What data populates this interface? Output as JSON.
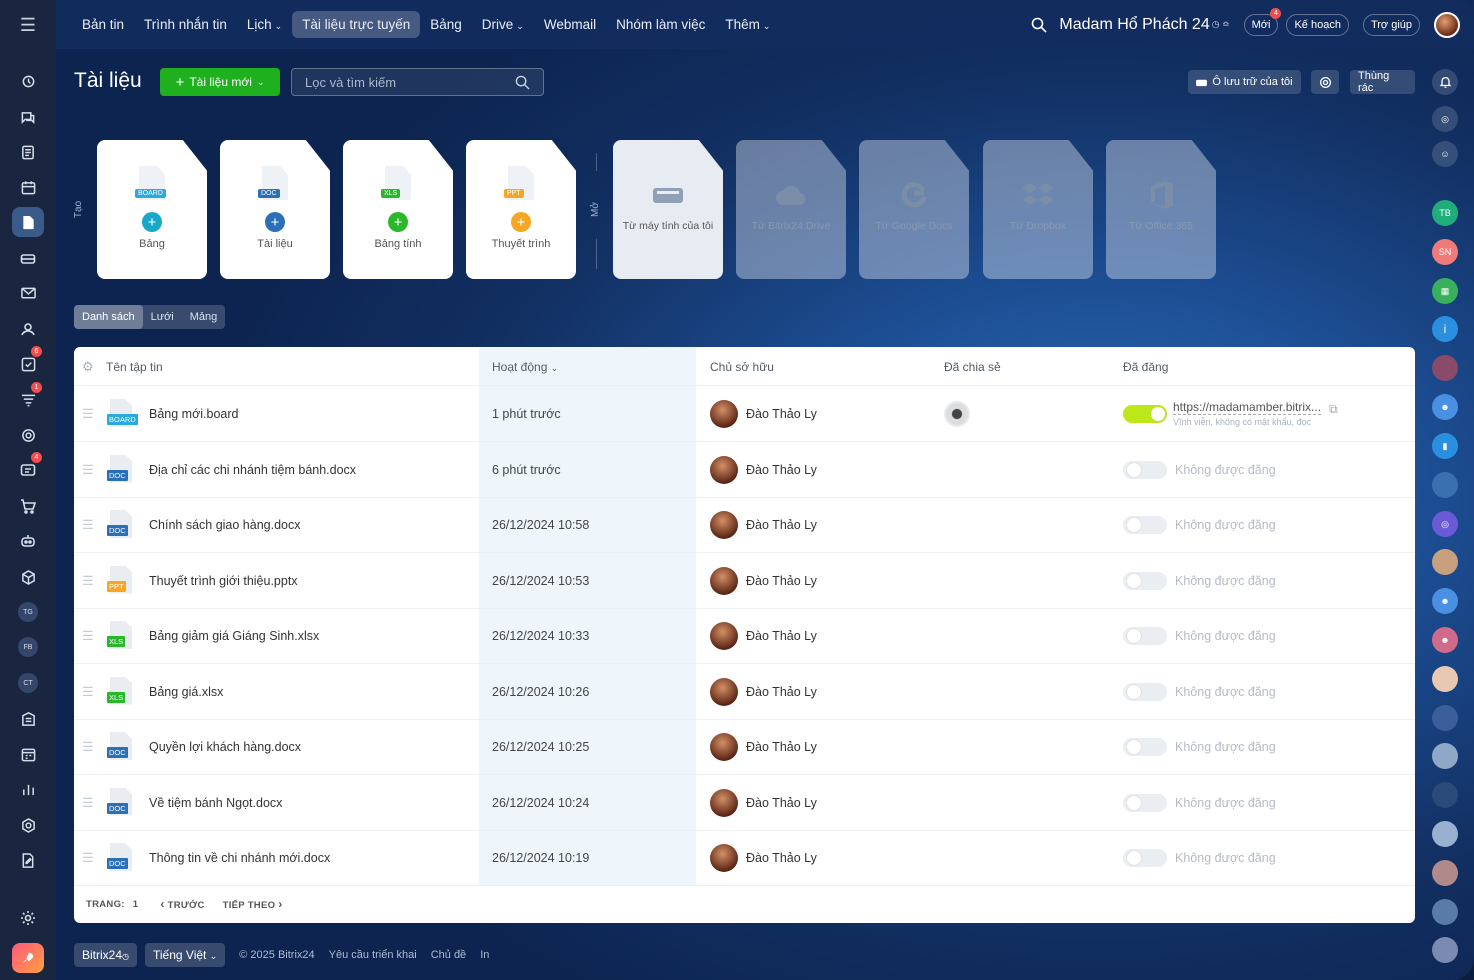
{
  "topbar": {
    "menu_items": [
      {
        "label": "Bản tin",
        "chevron": false,
        "active": false
      },
      {
        "label": "Trình nhắn tin",
        "chevron": false,
        "active": false
      },
      {
        "label": "Lịch",
        "chevron": true,
        "active": false
      },
      {
        "label": "Tài liệu trực tuyến",
        "chevron": false,
        "active": true
      },
      {
        "label": "Bảng",
        "chevron": false,
        "active": false
      },
      {
        "label": "Drive",
        "chevron": true,
        "active": false
      },
      {
        "label": "Webmail",
        "chevron": false,
        "active": false
      },
      {
        "label": "Nhóm làm việc",
        "chevron": false,
        "active": false
      },
      {
        "label": "Thêm",
        "chevron": true,
        "active": false
      }
    ],
    "user_name": "Madam Hổ Phách 24",
    "new_label": "Mới",
    "new_count": "4",
    "plan_label": "Kế hoạch",
    "help_label": "Trợ giúp"
  },
  "leftbar": {
    "badges": {
      "tasks": "6",
      "feed": "1",
      "chat": "4"
    },
    "tags": [
      "TG",
      "FB",
      "CT"
    ]
  },
  "header": {
    "title": "Tài liệu",
    "new_button": "Tài liệu mới",
    "search_placeholder": "Lọc và tìm kiếm",
    "my_storage": "Ô lưu trữ của tôi",
    "trash": "Thùng rác"
  },
  "create_section": {
    "label": "Tạo",
    "cards": [
      {
        "tag": "BOARD",
        "label": "Bảng",
        "tag_color": "#2aa8e0",
        "plus_color": "#17a7c9"
      },
      {
        "tag": "DOC",
        "label": "Tài liệu",
        "tag_color": "#2a6fb8",
        "plus_color": "#2a6fb8"
      },
      {
        "tag": "XLS",
        "label": "Bảng tính",
        "tag_color": "#28b82a",
        "plus_color": "#28b82a"
      },
      {
        "tag": "PPT",
        "label": "Thuyết trình",
        "tag_color": "#f5a623",
        "plus_color": "#f5a623"
      }
    ]
  },
  "open_section": {
    "label": "Mở",
    "cards": [
      {
        "label": "Từ máy tính của tôi",
        "icon": "hard-drive-icon"
      },
      {
        "label": "Từ Bitrix24.Drive",
        "icon": "cloud-icon"
      },
      {
        "label": "Từ Google Docs",
        "icon": "google-icon"
      },
      {
        "label": "Từ Dropbox",
        "icon": "dropbox-icon"
      },
      {
        "label": "Từ Office 365",
        "icon": "office-icon"
      }
    ]
  },
  "view_tabs": [
    "Danh sách",
    "Lưới",
    "Mảng"
  ],
  "grid": {
    "headers": {
      "name": "Tên tập tin",
      "activity": "Hoạt động",
      "owner": "Chủ sở hữu",
      "shared": "Đã chia sẻ",
      "published": "Đã đăng"
    },
    "rows": [
      {
        "type": "BOARD",
        "name": "Bảng mới.board",
        "activity": "1 phút trước",
        "owner": "Đào Thảo Ly",
        "shared": true,
        "published": true,
        "link": "https://madamamber.bitrix...",
        "link_note": "Vĩnh viễn, không có mật khẩu, đọc"
      },
      {
        "type": "DOC",
        "name": "Địa chỉ các chi nhánh tiệm bánh.docx",
        "activity": "6 phút trước",
        "owner": "Đào Thảo Ly",
        "shared": false,
        "published": false
      },
      {
        "type": "DOC",
        "name": "Chính sách giao hàng.docx",
        "activity": "26/12/2024 10:58",
        "owner": "Đào Thảo Ly",
        "shared": false,
        "published": false
      },
      {
        "type": "PPT",
        "name": "Thuyết trình giới thiệu.pptx",
        "activity": "26/12/2024 10:53",
        "owner": "Đào Thảo Ly",
        "shared": false,
        "published": false
      },
      {
        "type": "XLS",
        "name": "Bảng giảm giá Giáng Sinh.xlsx",
        "activity": "26/12/2024 10:33",
        "owner": "Đào Thảo Ly",
        "shared": false,
        "published": false
      },
      {
        "type": "XLS",
        "name": "Bảng giá.xlsx",
        "activity": "26/12/2024 10:26",
        "owner": "Đào Thảo Ly",
        "shared": false,
        "published": false
      },
      {
        "type": "DOC",
        "name": "Quyền lợi khách hàng.docx",
        "activity": "26/12/2024 10:25",
        "owner": "Đào Thảo Ly",
        "shared": false,
        "published": false
      },
      {
        "type": "DOC",
        "name": "Về tiệm bánh Ngọt.docx",
        "activity": "26/12/2024 10:24",
        "owner": "Đào Thảo Ly",
        "shared": false,
        "published": false
      },
      {
        "type": "DOC",
        "name": "Thông tin về chi nhánh mới.docx",
        "activity": "26/12/2024 10:19",
        "owner": "Đào Thảo Ly",
        "shared": false,
        "published": false
      }
    ],
    "not_published": "Không được đăng",
    "type_colors": {
      "BOARD": "#2aa8e0",
      "DOC": "#2a6fb8",
      "XLS": "#28b82a",
      "PPT": "#f5a623"
    }
  },
  "pager": {
    "page_label": "TRANG:",
    "page": "1",
    "prev": "TRƯỚC",
    "next": "TIẾP THEO"
  },
  "footer": {
    "brand": "Bitrix24",
    "language": "Tiếng Việt",
    "copyright": "© 2025 Bitrix24",
    "implementation": "Yêu cầu triển khai",
    "theme": "Chủ đề",
    "print": "In"
  },
  "rightbar": {
    "tags": [
      "TB",
      "SN"
    ]
  }
}
